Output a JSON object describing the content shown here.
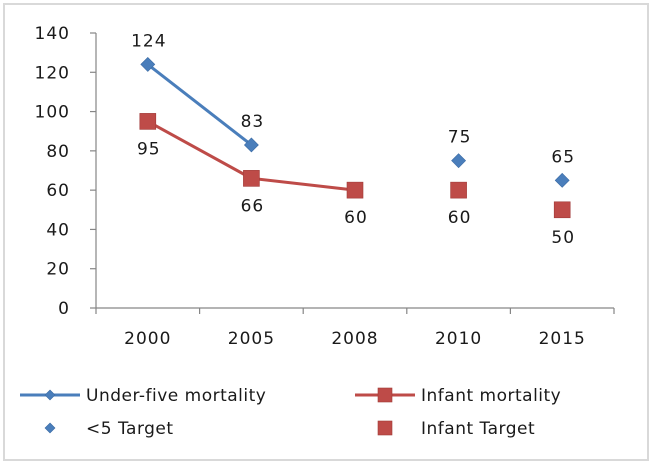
{
  "chart_data": {
    "type": "line",
    "title": "",
    "xlabel": "",
    "ylabel": "",
    "categories": [
      "2000",
      "2005",
      "2008",
      "2010",
      "2015"
    ],
    "ylim": [
      0,
      140
    ],
    "yticks": [
      0,
      20,
      40,
      60,
      80,
      100,
      120,
      140
    ],
    "grid": false,
    "legend_position": "bottom",
    "series": [
      {
        "name": "Under-five mortality",
        "style": "line-marker",
        "marker": "diamond",
        "color": "#4a7ebb",
        "values": [
          124,
          83,
          null,
          null,
          null
        ],
        "labels": [
          "124",
          "83",
          "",
          "",
          ""
        ],
        "label_position": "above"
      },
      {
        "name": "Infant mortality",
        "style": "line-marker",
        "marker": "square",
        "color": "#be4b48",
        "values": [
          95,
          66,
          60,
          null,
          null
        ],
        "labels": [
          "95",
          "66",
          "60",
          "",
          ""
        ],
        "label_position": "below"
      },
      {
        "name": "<5 Target",
        "style": "marker",
        "marker": "diamond",
        "color": "#4a7ebb",
        "values": [
          null,
          null,
          null,
          75,
          65
        ],
        "labels": [
          "",
          "",
          "",
          "75",
          "65"
        ],
        "label_position": "above"
      },
      {
        "name": "Infant Target",
        "style": "marker",
        "marker": "square",
        "color": "#be4b48",
        "values": [
          null,
          null,
          null,
          60,
          50
        ],
        "labels": [
          "",
          "",
          "",
          "60",
          "50"
        ],
        "label_position": "below"
      }
    ]
  }
}
